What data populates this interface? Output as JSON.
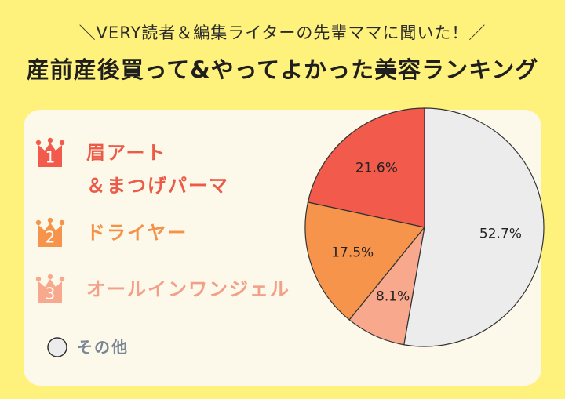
{
  "chart_data": {
    "type": "pie",
    "subtitle": "＼VERY読者＆編集ライターの先輩ママに聞いた！／",
    "title": "産前産後買って&やってよかった美容ランキング",
    "categories": [
      "眉アート\n＆まつげパーマ",
      "ドライヤー",
      "オールインワンジェル",
      "その他"
    ],
    "ranks": [
      1,
      2,
      3,
      null
    ],
    "values": [
      21.6,
      17.5,
      8.1,
      52.7
    ],
    "value_labels": [
      "21.6%",
      "17.5%",
      "8.1%",
      "52.7%"
    ],
    "colors": [
      "#f25a4b",
      "#f7944b",
      "#f8a88c",
      "#ececec"
    ],
    "legend_text_colors": [
      "#ec5a48",
      "#f39248",
      "#f3a08a",
      "#7a8595"
    ]
  }
}
